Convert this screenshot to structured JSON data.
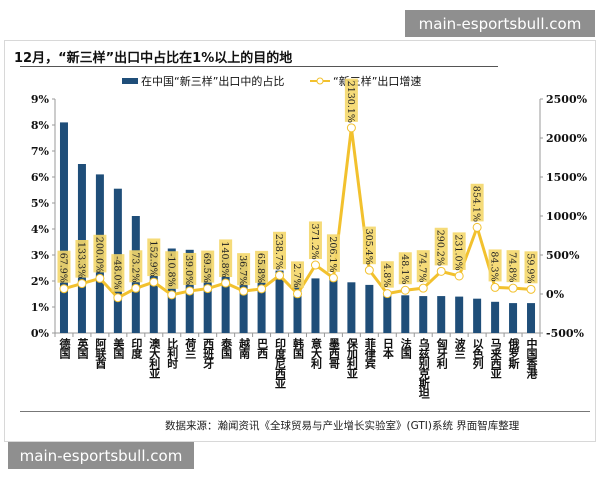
{
  "watermark_top": "main-esportsbull.com",
  "watermark_bottom": "main-esportsbull.com",
  "source": "数据来源：瀚闻资讯《全球贸易与产业增长实验室》(GTI)系统  界面智库整理",
  "chart_data": {
    "type": "bar+line",
    "title": "12月，“新三样”出口中占比在1%以上的目的地",
    "categories": [
      "德国",
      "英国",
      "阿联酋",
      "美国",
      "印度",
      "澳大利亚",
      "比利时",
      "荷兰",
      "西班牙",
      "泰国",
      "越南",
      "巴西",
      "印度尼西亚",
      "韩国",
      "意大利",
      "墨西哥",
      "保加利亚",
      "菲律宾",
      "日本",
      "法国",
      "乌兹别克斯坦",
      "匈牙利",
      "波兰",
      "以色列",
      "马来西亚",
      "俄罗斯",
      "中国香港"
    ],
    "series": [
      {
        "name": "在中国“新三样”出口中的占比",
        "type": "bar",
        "axis": "left",
        "color": "#1f4e79",
        "values": [
          8.1,
          6.5,
          6.1,
          5.55,
          4.5,
          3.5,
          3.25,
          3.2,
          3.0,
          2.95,
          2.85,
          2.8,
          2.4,
          2.05,
          2.1,
          2.05,
          1.95,
          1.85,
          1.55,
          1.45,
          1.42,
          1.42,
          1.4,
          1.32,
          1.2,
          1.15,
          1.15
        ]
      },
      {
        "name": "“新三样”出口增速",
        "type": "line",
        "axis": "right",
        "color": "#f2c12e",
        "values": [
          67.9,
          133.3,
          200.0,
          -48.0,
          73.2,
          152.9,
          -10.8,
          39.0,
          69.5,
          140.8,
          36.7,
          65.8,
          238.7,
          2.7,
          371.2,
          206.1,
          2130.1,
          305.4,
          4.8,
          48.1,
          74.7,
          290.2,
          231.0,
          854.1,
          84.3,
          74.8,
          59.9
        ],
        "labels": [
          "67.9%",
          "133.3%",
          "200.0%",
          "-48.0%",
          "73.2%",
          "152.9%",
          "-10.8%",
          "39.0%",
          "69.5%",
          "140.8%",
          "36.7%",
          "65.8%",
          "238.7%",
          "2.7%",
          "371.2%",
          "206.1%",
          "2130.1%",
          "305.4%",
          "4.8%",
          "48.1%",
          "74.7%",
          "290.2%",
          "231.0%",
          "854.1%",
          "84.3%",
          "74.8%",
          "59.9%"
        ]
      }
    ],
    "y_left": {
      "ylim": [
        0,
        9
      ],
      "ticks": [
        "0%",
        "1%",
        "2%",
        "3%",
        "4%",
        "5%",
        "6%",
        "7%",
        "8%",
        "9%"
      ]
    },
    "y_right": {
      "ylim": [
        -500,
        2500
      ],
      "ticks": [
        "-500%",
        "0%",
        "500%",
        "1000%",
        "1500%",
        "2000%",
        "2500%"
      ]
    },
    "grid": false,
    "legend": "top-center"
  }
}
